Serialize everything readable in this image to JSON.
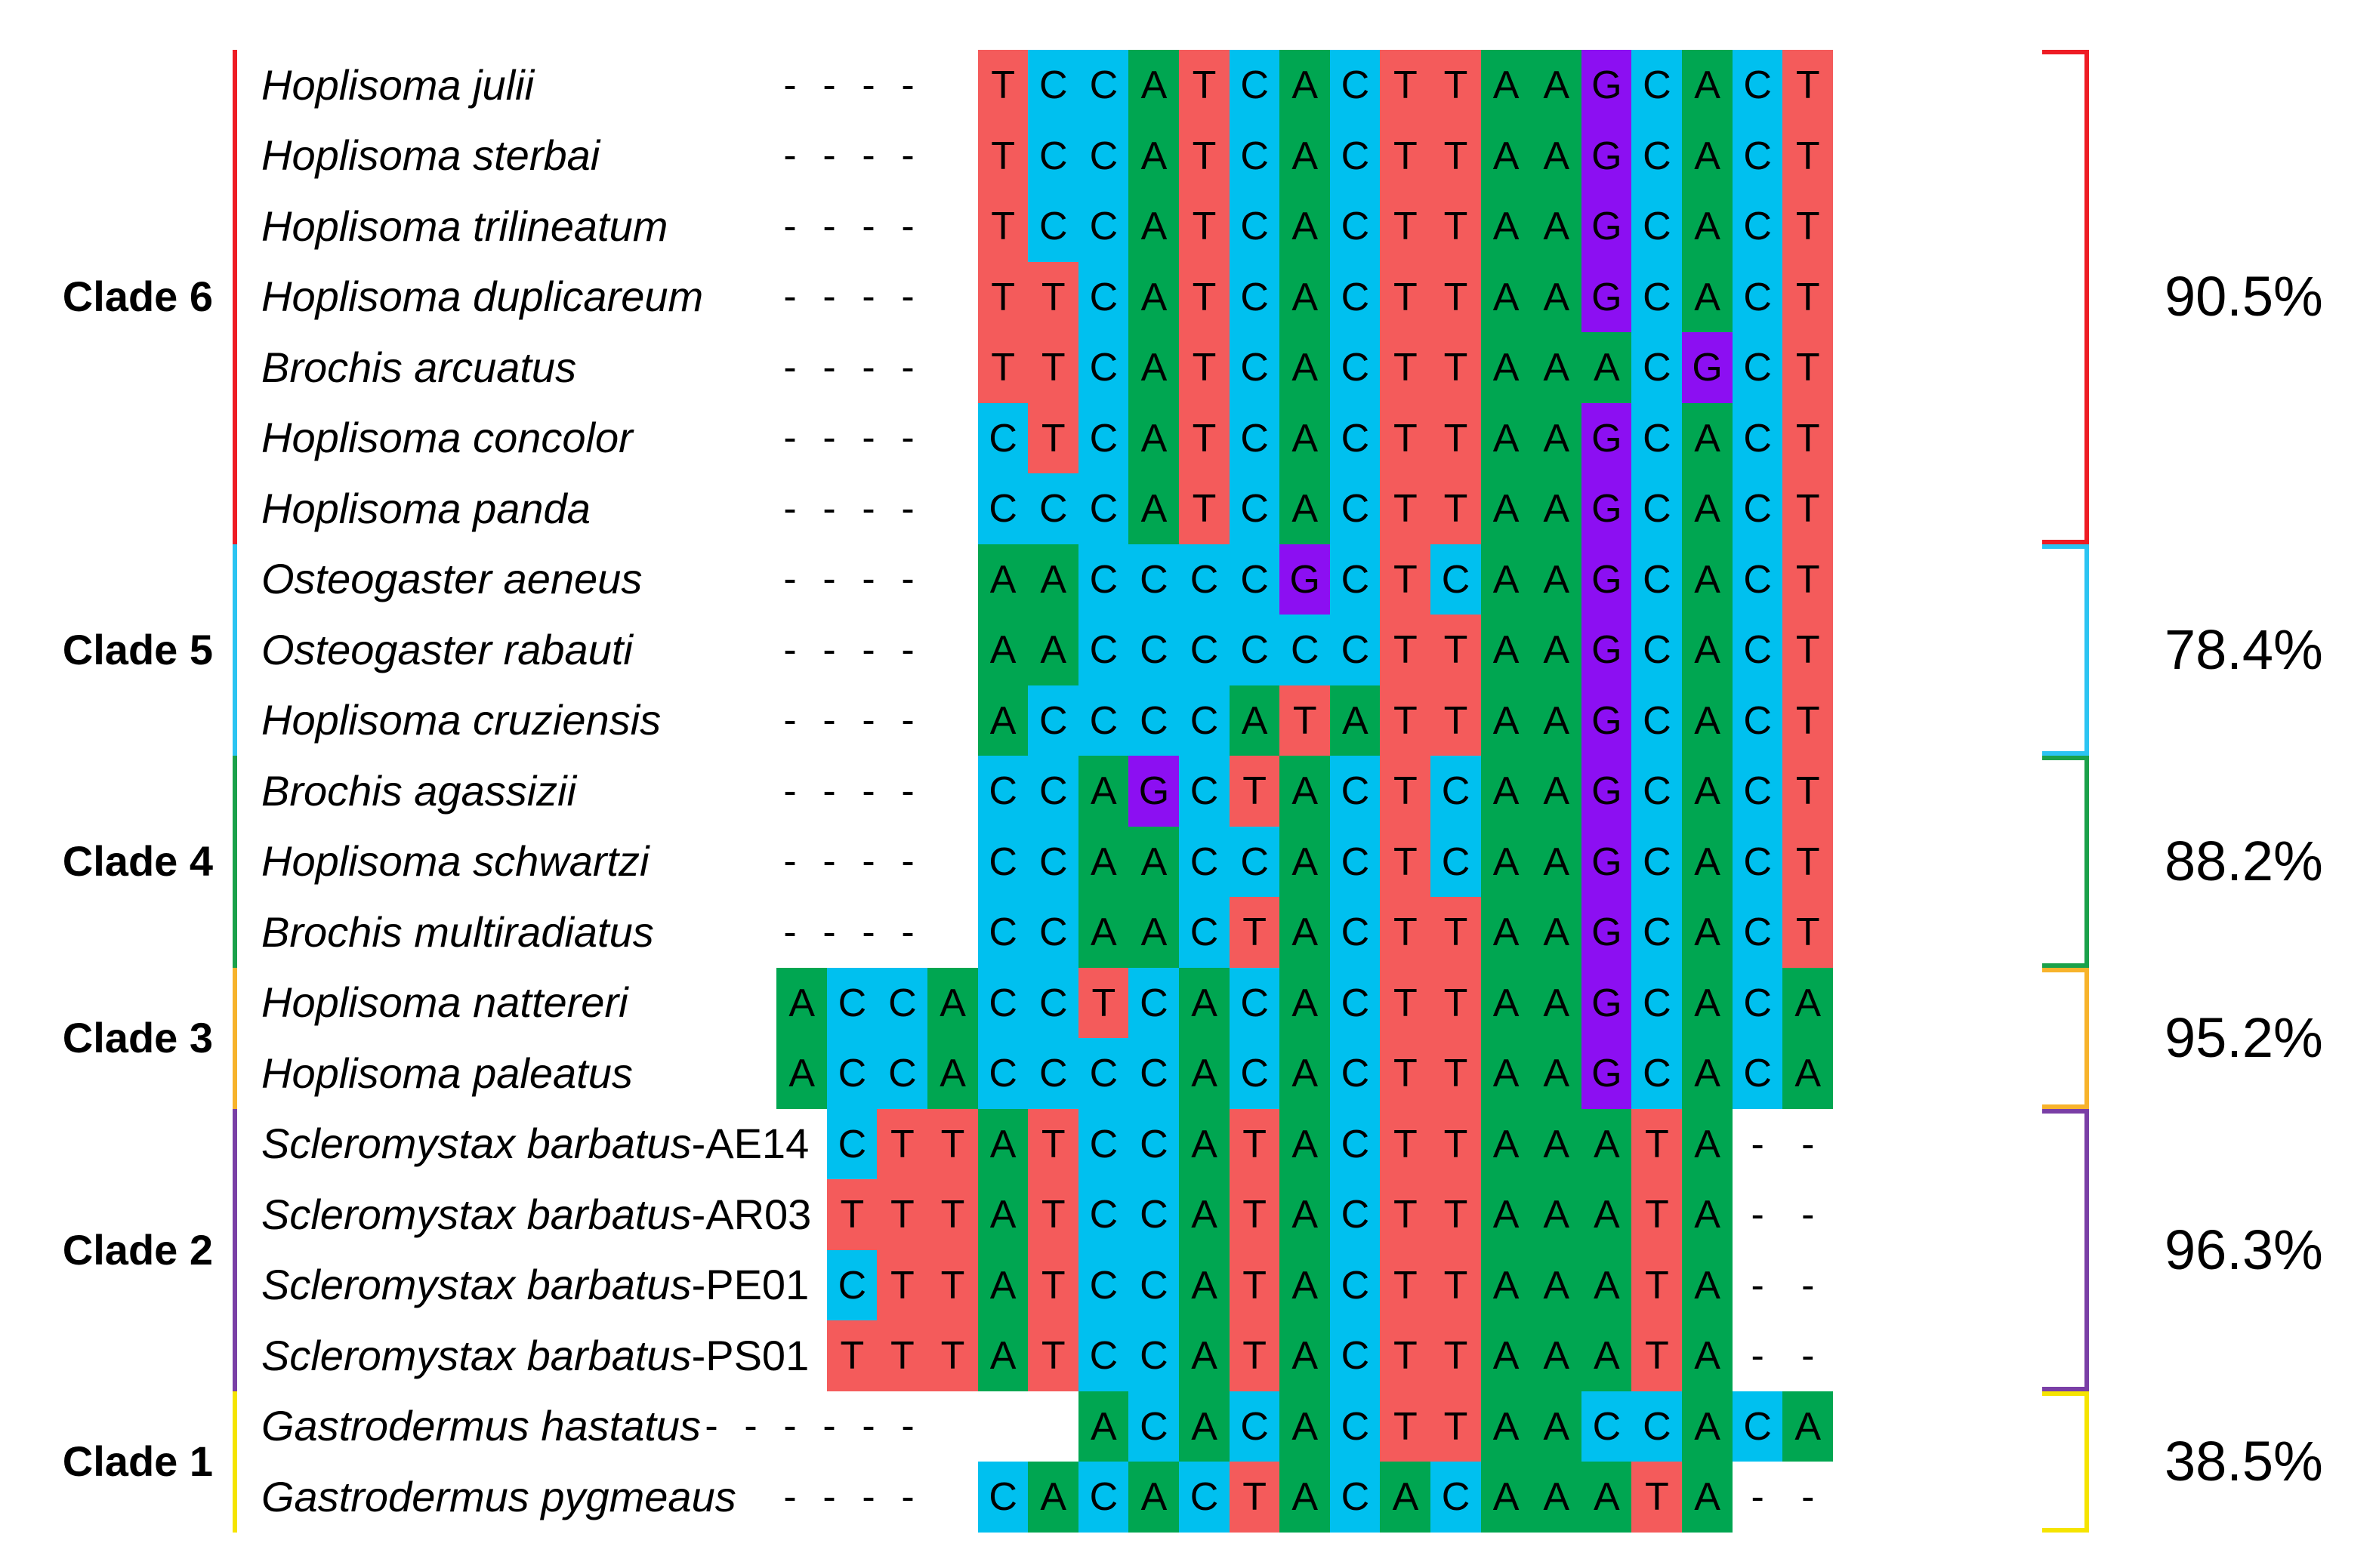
{
  "colors": {
    "T": "#f45b5b",
    "C": "#00c0ef",
    "A": "#00a651",
    "G": "#8c0ff2",
    "-": "#ffffff"
  },
  "clades": [
    {
      "label": "Clade 6",
      "color": "#ee1c24",
      "percent": "90.5%",
      "rows": [
        {
          "genus": "Hoplisoma julii",
          "suffix": "",
          "seq": "----TCCATCACTTAAGCACT"
        },
        {
          "genus": "Hoplisoma sterbai",
          "suffix": "",
          "seq": "----TCCATCACTTAAGCACT"
        },
        {
          "genus": "Hoplisoma trilineatum",
          "suffix": "",
          "seq": "----TCCATCACTTAAGCACT"
        },
        {
          "genus": "Hoplisoma duplicareum",
          "suffix": "",
          "seq": "----TTCATCACTTAAGCACT"
        },
        {
          "genus": "Brochis arcuatus",
          "suffix": "",
          "seq": "----TTCATCACTTAAACGCT"
        },
        {
          "genus": "Hoplisoma concolor",
          "suffix": "",
          "seq": "----CTCATCACTTAAGCACT"
        },
        {
          "genus": "Hoplisoma panda",
          "suffix": "",
          "seq": "----CCCATCACTTAAGCACT"
        }
      ]
    },
    {
      "label": "Clade 5",
      "color": "#2bc4f2",
      "percent": "78.4%",
      "rows": [
        {
          "genus": "Osteogaster aeneus",
          "suffix": "",
          "seq": "----AACCCCGCTCAAGCACT"
        },
        {
          "genus": "Osteogaster rabauti",
          "suffix": "",
          "seq": "----AACCCCCCTTAAGCACT"
        },
        {
          "genus": "Hoplisoma cruziensis",
          "suffix": "",
          "seq": "----ACCCCATATTAAGCACT"
        }
      ]
    },
    {
      "label": "Clade 4",
      "color": "#1aa14a",
      "percent": "88.2%",
      "rows": [
        {
          "genus": "Brochis agassizii",
          "suffix": "",
          "seq": "----CCAGCTACTCAAGCACT"
        },
        {
          "genus": "Hoplisoma schwartzi",
          "suffix": "",
          "seq": "----CCAACCACTCAAGCACT"
        },
        {
          "genus": "Brochis multiradiatus",
          "suffix": "",
          "seq": "----CCAACTACTTAAGCACT"
        }
      ]
    },
    {
      "label": "Clade 3",
      "color": "#f7b32b",
      "percent": "95.2%",
      "rows": [
        {
          "genus": "Hoplisoma nattereri",
          "suffix": "",
          "seq": "ACCACCTCACACTTAAGCACA"
        },
        {
          "genus": "Hoplisoma paleatus",
          "suffix": "",
          "seq": "ACCACCCCACACTTAAGCACA"
        }
      ]
    },
    {
      "label": "Clade 2",
      "color": "#7a3fa6",
      "percent": "96.3%",
      "rows": [
        {
          "genus": "Scleromystax barbatus",
          "suffix": "-AE14",
          "seq": "-CTTATCCATACTTAAATA--"
        },
        {
          "genus": "Scleromystax barbatus",
          "suffix": "-AR03",
          "seq": "-TTTATCCATACTTAAATA--"
        },
        {
          "genus": "Scleromystax barbatus",
          "suffix": "-PE01",
          "seq": "-CTTATCCATACTTAAATA--"
        },
        {
          "genus": "Scleromystax barbatus",
          "suffix": "-PS01",
          "seq": "-TTTATCCATACTTAAATA--"
        }
      ]
    },
    {
      "label": "Clade 1",
      "color": "#f5e400",
      "percent": "38.5%",
      "rows": [
        {
          "genus": "Gastrodermus hastatus",
          "suffix": "",
          "seq": "------ACACACTTAACCACA"
        },
        {
          "genus": "Gastrodermus pygmeaus",
          "suffix": "",
          "seq": "----CACACTACACAAATA--"
        }
      ]
    }
  ]
}
